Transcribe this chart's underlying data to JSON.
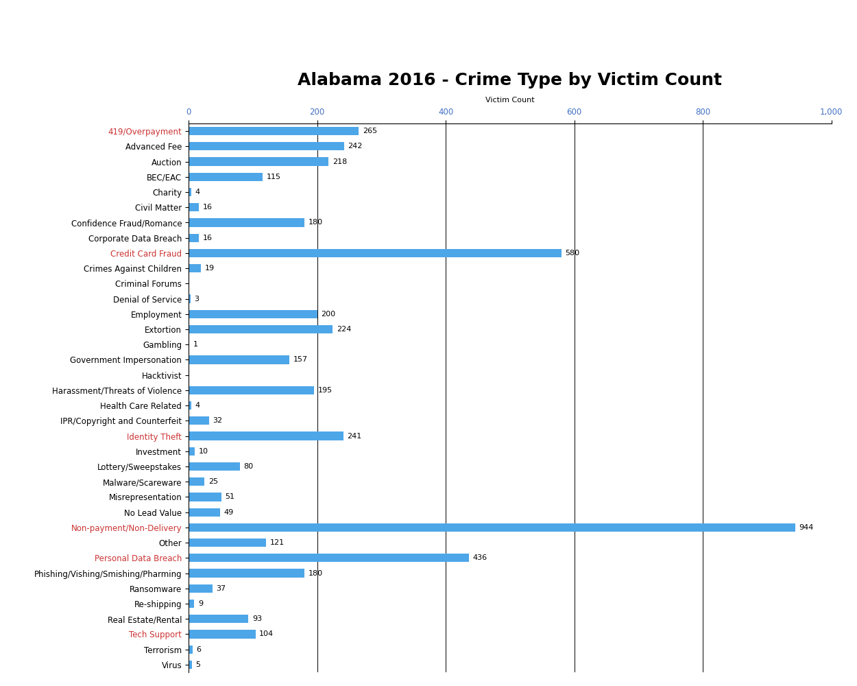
{
  "title": "Alabama 2016 - Crime Type by Victim Count",
  "xlabel": "Victim Count",
  "categories": [
    "419/Overpayment",
    "Advanced Fee",
    "Auction",
    "BEC/EAC",
    "Charity",
    "Civil Matter",
    "Confidence Fraud/Romance",
    "Corporate Data Breach",
    "Credit Card Fraud",
    "Crimes Against Children",
    "Criminal Forums",
    "Denial of Service",
    "Employment",
    "Extortion",
    "Gambling",
    "Government Impersonation",
    "Hacktivist",
    "Harassment/Threats of Violence",
    "Health Care Related",
    "IPR/Copyright and Counterfeit",
    "Identity Theft",
    "Investment",
    "Lottery/Sweepstakes",
    "Malware/Scareware",
    "Misrepresentation",
    "No Lead Value",
    "Non-payment/Non-Delivery",
    "Other",
    "Personal Data Breach",
    "Phishing/Vishing/Smishing/Pharming",
    "Ransomware",
    "Re-shipping",
    "Real Estate/Rental",
    "Tech Support",
    "Terrorism",
    "Virus"
  ],
  "values": [
    265,
    242,
    218,
    115,
    4,
    16,
    180,
    16,
    580,
    19,
    0,
    3,
    200,
    224,
    1,
    157,
    0,
    195,
    4,
    32,
    241,
    10,
    80,
    25,
    51,
    49,
    944,
    121,
    436,
    180,
    37,
    9,
    93,
    104,
    6,
    5
  ],
  "bar_color": "#4da6e8",
  "label_color_red": "#cc3333",
  "title_fontsize": 18,
  "tick_label_fontsize": 8.5,
  "value_label_fontsize": 8,
  "xlabel_fontsize": 8,
  "xtick_fontsize": 8.5,
  "xlim": [
    0,
    1000
  ],
  "xticks": [
    0,
    200,
    400,
    600,
    800,
    1000
  ],
  "xtick_labels": [
    "0",
    "200",
    "400",
    "600",
    "800",
    "1,000"
  ],
  "background_color": "#ffffff",
  "red_labels": [
    "419/Overpayment",
    "Credit Card Fraud",
    "Identity Theft",
    "Non-payment/Non-Delivery",
    "Personal Data Breach",
    "Tech Support"
  ],
  "grid_color": "#000000",
  "grid_linewidth": 0.7,
  "bar_height": 0.55
}
